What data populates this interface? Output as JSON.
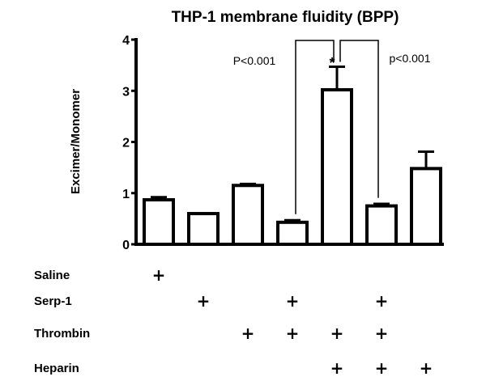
{
  "chart_data": {
    "type": "bar",
    "title": "THP-1 membrane fluidity (BPP)",
    "ylabel": "Excimer/Monomer",
    "xlabel": "",
    "ylim": [
      0,
      4
    ],
    "yticks": [
      "0",
      "1",
      "2",
      "3",
      "4"
    ],
    "grid": false,
    "values": [
      0.87,
      0.6,
      1.15,
      0.43,
      3.02,
      0.75,
      1.48
    ],
    "errors": [
      0.05,
      0.0,
      0.03,
      0.04,
      0.45,
      0.04,
      0.33
    ],
    "bar_colors": [
      "#ffffff"
    ],
    "conditions": {
      "labels": [
        "Saline",
        "Serp-1",
        "Thrombin",
        "Heparin"
      ],
      "matrix": [
        [
          true,
          false,
          false,
          false,
          false,
          false,
          false
        ],
        [
          false,
          true,
          false,
          true,
          false,
          true,
          false
        ],
        [
          false,
          false,
          true,
          true,
          true,
          true,
          false
        ],
        [
          false,
          false,
          false,
          false,
          true,
          true,
          true
        ]
      ],
      "mark": "+"
    },
    "annotations": {
      "left_p": "P<0.001",
      "right_p": "p<0.001",
      "star": "*"
    }
  }
}
